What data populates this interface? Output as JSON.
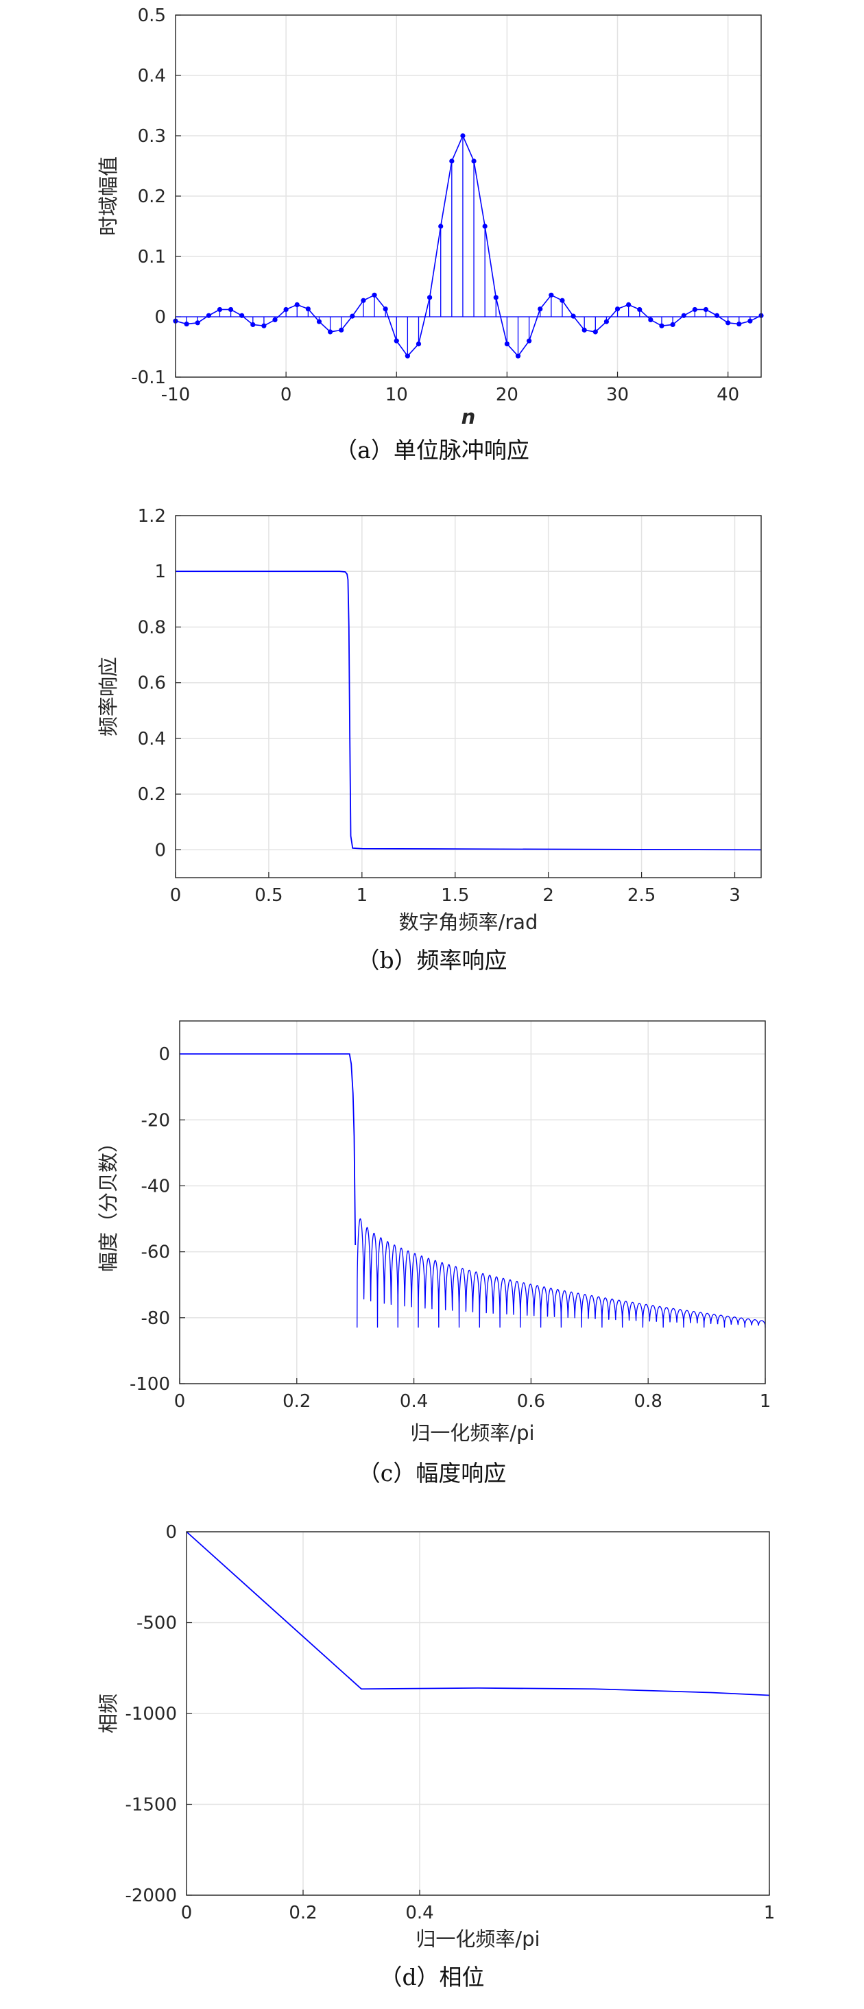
{
  "chart_data": [
    {
      "type": "scatter",
      "style": "stem",
      "caption": "（a）单位脉冲响应",
      "xlabel": "n",
      "ylabel": "时域幅值",
      "xlim": [
        -10,
        43
      ],
      "ylim": [
        -0.1,
        0.5
      ],
      "xticks": [
        "-10",
        "0",
        "10",
        "20",
        "30",
        "40"
      ],
      "yticks": [
        "-0.1",
        "0",
        "0.1",
        "0.2",
        "0.3",
        "0.4",
        "0.5"
      ],
      "grid": true,
      "series": [
        {
          "color": "#0000ff",
          "x": [
            -10,
            -9,
            -8,
            -7,
            -6,
            -5,
            -4,
            -3,
            -2,
            -1,
            0,
            1,
            2,
            3,
            4,
            5,
            6,
            7,
            8,
            9,
            10,
            11,
            12,
            13,
            14,
            15,
            16,
            17,
            18,
            19,
            20,
            21,
            22,
            23,
            24,
            25,
            26,
            27,
            28,
            29,
            30,
            31,
            32,
            33,
            34,
            35,
            36,
            37,
            38,
            39,
            40,
            41,
            42,
            43
          ],
          "y": [
            -0.007,
            -0.012,
            -0.01,
            0.002,
            0.012,
            0.012,
            0.002,
            -0.013,
            -0.015,
            -0.005,
            0.012,
            0.02,
            0.013,
            -0.008,
            -0.025,
            -0.022,
            0.001,
            0.027,
            0.036,
            0.013,
            -0.04,
            -0.065,
            -0.045,
            0.032,
            0.15,
            0.258,
            0.3,
            0.258,
            0.15,
            0.032,
            -0.045,
            -0.065,
            -0.04,
            0.013,
            0.036,
            0.027,
            0.001,
            -0.022,
            -0.025,
            -0.008,
            0.013,
            0.02,
            0.012,
            -0.005,
            -0.015,
            -0.013,
            0.002,
            0.012,
            0.012,
            0.002,
            -0.01,
            -0.012,
            -0.007,
            0.002
          ]
        }
      ]
    },
    {
      "type": "line",
      "caption": "（b）频率响应",
      "xlabel": "数字角频率/rad",
      "ylabel": "频率响应",
      "xlim": [
        0,
        3.1416
      ],
      "ylim": [
        -0.1,
        1.2
      ],
      "xticks": [
        "0",
        "0.5",
        "1",
        "1.5",
        "2",
        "2.5",
        "3"
      ],
      "yticks": [
        "0",
        "0.2",
        "0.4",
        "0.6",
        "0.8",
        "1",
        "1.2"
      ],
      "grid": true,
      "series": [
        {
          "color": "#0000ff",
          "x": [
            0,
            0.5,
            0.88,
            0.91,
            0.92,
            0.925,
            0.93,
            0.935,
            0.94,
            0.95,
            1.0,
            2.0,
            3.1416
          ],
          "y": [
            1.0,
            1.0,
            1.0,
            0.998,
            0.99,
            0.97,
            0.8,
            0.4,
            0.05,
            0.006,
            0.004,
            0.002,
            0.0
          ]
        }
      ]
    },
    {
      "type": "line",
      "caption": "（c）幅度响应",
      "xlabel": "归一化频率/pi",
      "ylabel": "幅度（分贝数）",
      "xlim": [
        0,
        1
      ],
      "ylim": [
        -100,
        10
      ],
      "xticks": [
        "0",
        "0.2",
        "0.4",
        "0.6",
        "0.8",
        "1"
      ],
      "yticks": [
        "-100",
        "-80",
        "-60",
        "-40",
        "-20",
        "0"
      ],
      "grid": true,
      "series": [
        {
          "color": "#0000ff",
          "x": [
            0,
            0.29,
            0.293,
            0.296,
            0.298,
            0.3,
            0.31,
            0.32,
            0.34,
            0.4,
            0.5,
            0.6,
            0.7,
            0.8,
            0.9,
            1.0
          ],
          "y": [
            0,
            0,
            -3,
            -12,
            -25,
            -58,
            -46,
            -71,
            -58,
            -66,
            -71,
            -74,
            -77,
            -79,
            -80,
            -81
          ]
        }
      ],
      "sidelobes": {
        "start": 0.303,
        "end": 1.0,
        "lobes": 60,
        "top_start": -46,
        "top_end": -81,
        "null_depth": -83
      }
    },
    {
      "type": "line",
      "caption": "（d）相位",
      "xlabel": "归一化频率/pi",
      "ylabel": "相频",
      "xlim": [
        0,
        1
      ],
      "ylim": [
        -2000,
        0
      ],
      "xticks": [
        "0",
        "0.2",
        "0.4",
        "1"
      ],
      "xtick_values": [
        0,
        0.2,
        0.4,
        1
      ],
      "yticks": [
        "-2000",
        "-1500",
        "-1000",
        "-500",
        "0"
      ],
      "grid": true,
      "series": [
        {
          "color": "#0000ff",
          "x": [
            0,
            0.3,
            0.5,
            0.7,
            0.9,
            1.0
          ],
          "y": [
            0,
            -865,
            -860,
            -865,
            -885,
            -900
          ]
        }
      ]
    }
  ]
}
